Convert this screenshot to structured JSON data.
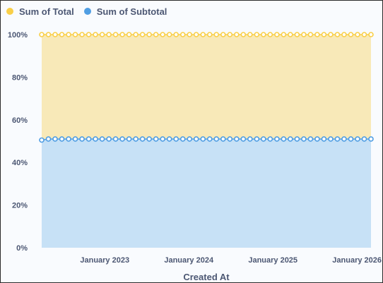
{
  "chart_data": {
    "type": "area",
    "stacked": true,
    "normalized": true,
    "xlabel": "Created At",
    "ylabel": "",
    "ylim": [
      0,
      1
    ],
    "y_ticks": [
      {
        "value": 0.0,
        "label": "0%"
      },
      {
        "value": 0.2,
        "label": "20%"
      },
      {
        "value": 0.4,
        "label": "40%"
      },
      {
        "value": 0.6,
        "label": "60%"
      },
      {
        "value": 0.8,
        "label": "80%"
      },
      {
        "value": 1.0,
        "label": "100%"
      }
    ],
    "x_range": [
      "2022-04",
      "2026-03"
    ],
    "x_ticks": [
      {
        "value": "2023-01",
        "label": "January 2023"
      },
      {
        "value": "2024-01",
        "label": "January 2024"
      },
      {
        "value": "2025-01",
        "label": "January 2025"
      },
      {
        "value": "2026-01",
        "label": "January 2026"
      }
    ],
    "grid": "horizontal-dashed",
    "legend_position": "top-left",
    "series": [
      {
        "name": "Sum of Total",
        "color": "#f9cf48",
        "fill": "#f8e9b8",
        "values": [
          1,
          1,
          1,
          1,
          1,
          1,
          1,
          1,
          1,
          1,
          1,
          1,
          1,
          1,
          1,
          1,
          1,
          1,
          1,
          1,
          1,
          1,
          1,
          1,
          1,
          1,
          1,
          1,
          1,
          1,
          1,
          1,
          1,
          1,
          1,
          1,
          1,
          1,
          1,
          1,
          1,
          1,
          1,
          1,
          1,
          1,
          1,
          1,
          1,
          1
        ]
      },
      {
        "name": "Sum of Subtotal",
        "color": "#509ee3",
        "fill": "#c7e1f6",
        "values": [
          0.505,
          0.51,
          0.51,
          0.51,
          0.51,
          0.51,
          0.51,
          0.51,
          0.51,
          0.51,
          0.51,
          0.51,
          0.51,
          0.51,
          0.51,
          0.51,
          0.51,
          0.51,
          0.51,
          0.51,
          0.51,
          0.51,
          0.51,
          0.51,
          0.51,
          0.51,
          0.51,
          0.51,
          0.51,
          0.51,
          0.51,
          0.51,
          0.51,
          0.51,
          0.51,
          0.51,
          0.51,
          0.51,
          0.51,
          0.51,
          0.51,
          0.51,
          0.51,
          0.51,
          0.51,
          0.51,
          0.51,
          0.51,
          0.51,
          0.51
        ]
      }
    ]
  }
}
